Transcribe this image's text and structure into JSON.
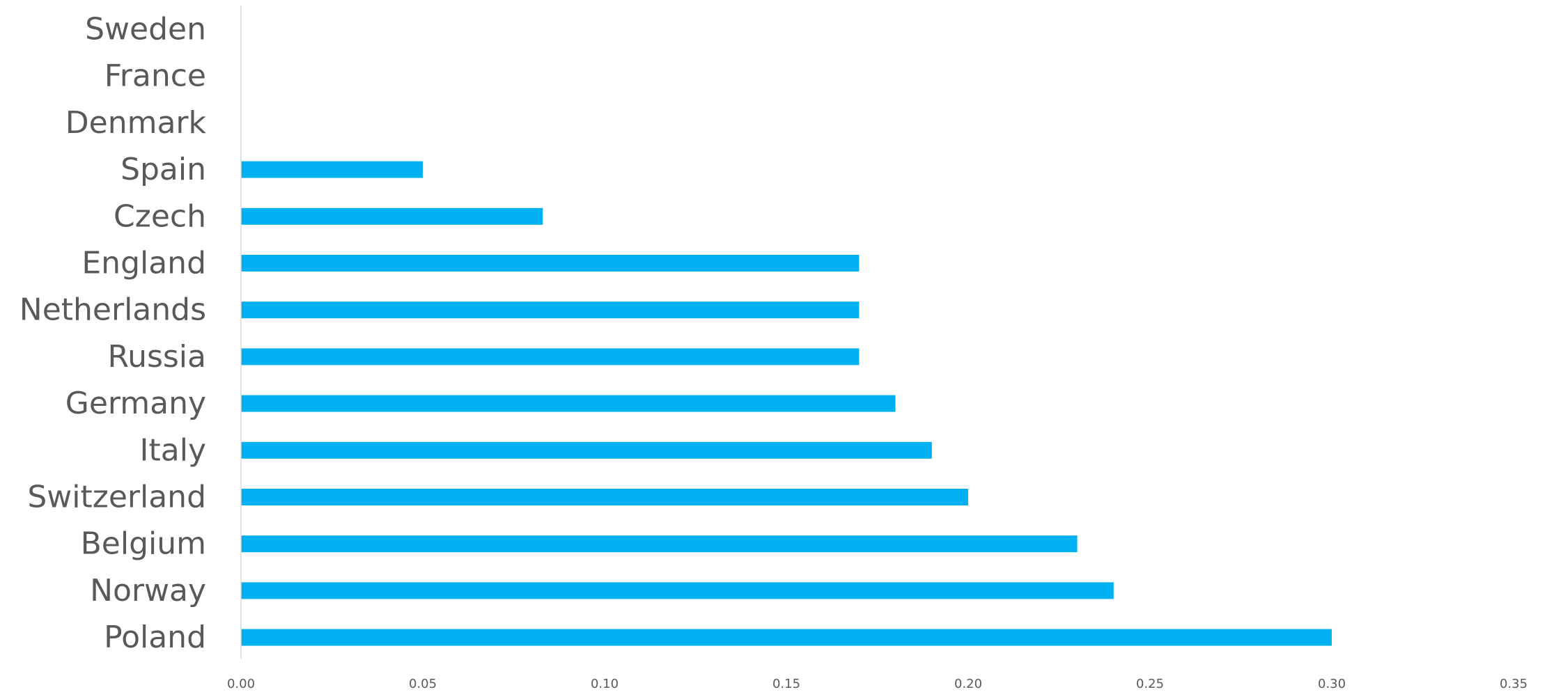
{
  "chart_data": {
    "type": "bar",
    "orientation": "horizontal",
    "title": "",
    "xlabel": "",
    "ylabel": "",
    "categories": [
      "Sweden",
      "France",
      "Denmark",
      "Spain",
      "Czech",
      "England",
      "Netherlands",
      "Russia",
      "Germany",
      "Italy",
      "Switzerland",
      "Belgium",
      "Norway",
      "Poland"
    ],
    "values": [
      0,
      0,
      0,
      0.05,
      0.083,
      0.17,
      0.17,
      0.17,
      0.18,
      0.19,
      0.2,
      0.23,
      0.24,
      0.3
    ],
    "xlim": [
      0,
      0.35
    ],
    "xticks": [
      "0.00",
      "0.05",
      "0.10",
      "0.15",
      "0.20",
      "0.25",
      "0.30",
      "0.35"
    ],
    "grid": false,
    "legend": "none",
    "bar_color": "#00B0F0",
    "axis_color": "#D9D9D9",
    "label_color": "#595959"
  }
}
